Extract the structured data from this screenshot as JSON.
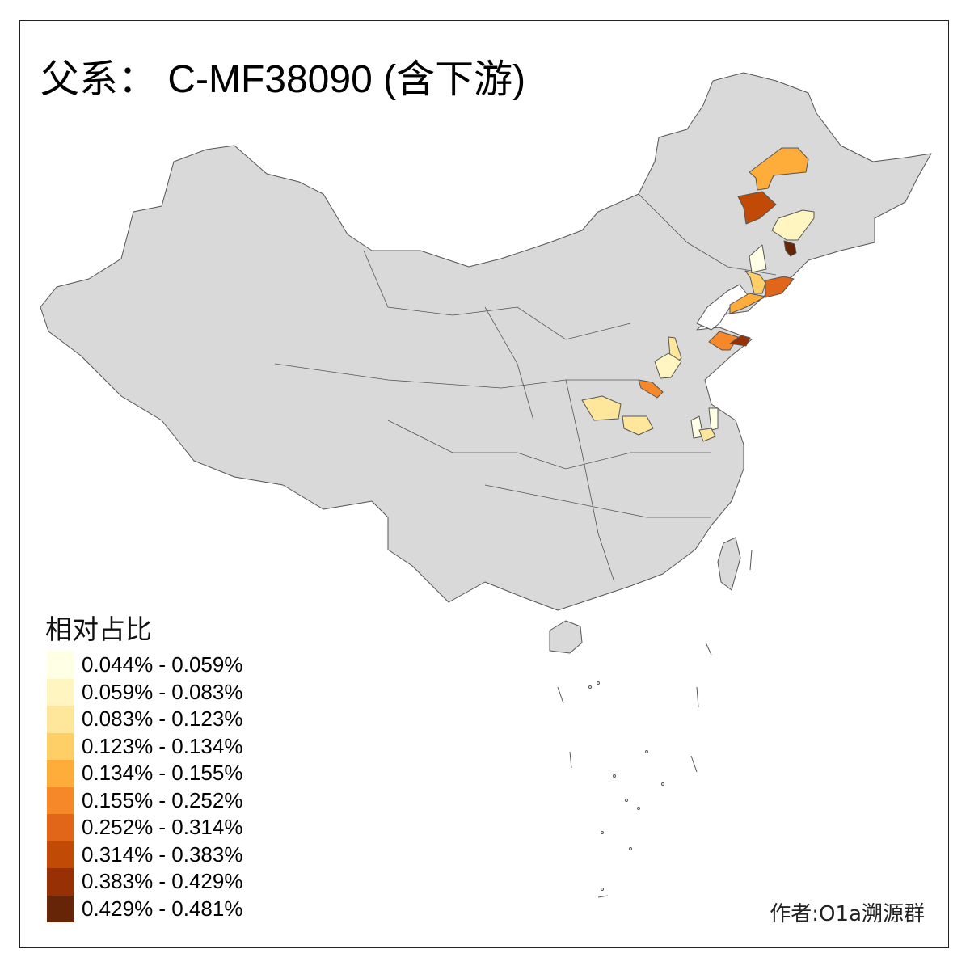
{
  "title": "父系： C-MF38090 (含下游)",
  "legend": {
    "title": "相对占比",
    "classes": [
      {
        "label": "0.044% - 0.059%",
        "color": "#FFFFE5"
      },
      {
        "label": "0.059% - 0.083%",
        "color": "#FFF5C0"
      },
      {
        "label": "0.083% - 0.123%",
        "color": "#FEE79A"
      },
      {
        "label": "0.123% - 0.134%",
        "color": "#FECF66"
      },
      {
        "label": "0.134% - 0.155%",
        "color": "#FEAD3A"
      },
      {
        "label": "0.155% - 0.252%",
        "color": "#F6882A"
      },
      {
        "label": "0.252% - 0.314%",
        "color": "#E2661A"
      },
      {
        "label": "0.314% - 0.383%",
        "color": "#C04A06"
      },
      {
        "label": "0.383% - 0.429%",
        "color": "#983006"
      },
      {
        "label": "0.429% - 0.481%",
        "color": "#662506"
      }
    ]
  },
  "map": {
    "base_fill": "#D9D9D9",
    "border_color": "#555555"
  },
  "author": "作者:O1a溯源群"
}
